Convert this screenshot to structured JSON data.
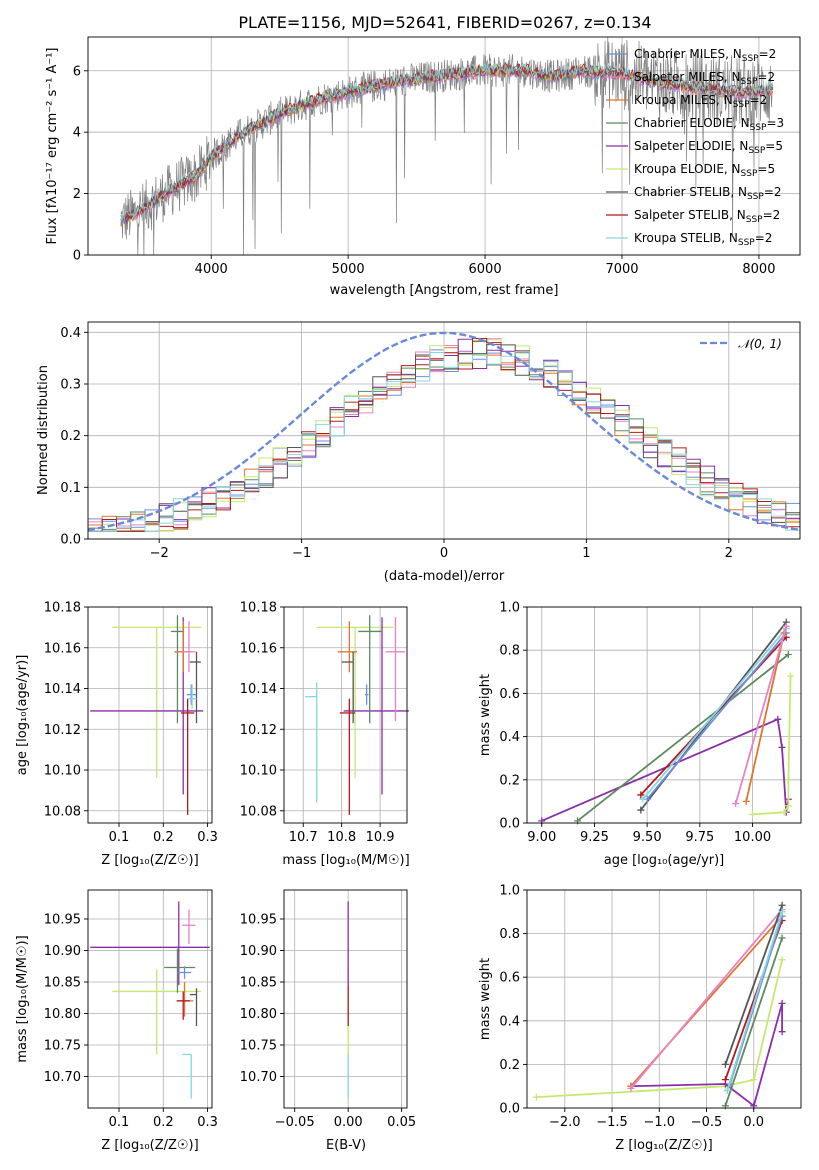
{
  "colors": {
    "chabrier_miles": "#6b8fe0",
    "salpeter_miles": "#e983c8",
    "kroupa_miles": "#e0752c",
    "chabrier_elodie": "#5b8a5e",
    "salpeter_elodie": "#8b2ea8",
    "kroupa_elodie": "#c7e870",
    "chabrier_stelib": "#555555",
    "salpeter_stelib": "#b5191d",
    "kroupa_stelib": "#86d6e0",
    "data": "#7f7f7f",
    "gaussian": "#6a8ad8"
  },
  "chart_data": [
    {
      "id": "spectrum",
      "type": "line",
      "title": "PLATE=1156, MJD=52641, FIBERID=0267, z=0.134",
      "xlabel": "wavelength [Angstrom, rest frame]",
      "ylabel": "Flux [fλ10⁻¹⁷ erg cm⁻² s⁻¹ A⁻¹]",
      "xlim": [
        3100,
        8300
      ],
      "ylim": [
        0,
        7.1
      ],
      "xticks": [
        "4000",
        "5000",
        "6000",
        "7000",
        "8000"
      ],
      "yticks": [
        "0",
        "2",
        "4",
        "6"
      ],
      "continuum": {
        "x": [
          3340,
          3500,
          3700,
          3900,
          4000,
          4200,
          4500,
          4800,
          5000,
          5300,
          5600,
          5800,
          6000,
          6300,
          6500,
          6700,
          7000,
          7300,
          7600,
          7900,
          8100
        ],
        "y": [
          1.1,
          1.5,
          2.1,
          2.6,
          3.2,
          3.9,
          4.6,
          5.1,
          5.3,
          5.6,
          5.8,
          5.9,
          6.0,
          6.0,
          5.8,
          6.0,
          5.9,
          5.6,
          5.4,
          5.3,
          5.4
        ]
      },
      "legend": [
        {
          "label": "Chabrier MILES, N",
          "sub": "SSP",
          "eq": "=2"
        },
        {
          "label": "Salpeter MILES, N",
          "sub": "SSP",
          "eq": "=2"
        },
        {
          "label": "Kroupa MILES, N",
          "sub": "SSP",
          "eq": "=2"
        },
        {
          "label": "Chabrier ELODIE, N",
          "sub": "SSP",
          "eq": "=3"
        },
        {
          "label": "Salpeter ELODIE, N",
          "sub": "SSP",
          "eq": "=5"
        },
        {
          "label": "Kroupa ELODIE, N",
          "sub": "SSP",
          "eq": "=5"
        },
        {
          "label": "Chabrier STELIB, N",
          "sub": "SSP",
          "eq": "=2"
        },
        {
          "label": "Salpeter STELIB, N",
          "sub": "SSP",
          "eq": "=2"
        },
        {
          "label": "Kroupa STELIB, N",
          "sub": "SSP",
          "eq": "=2"
        }
      ],
      "legend_placement": "upper-right"
    },
    {
      "id": "residuals",
      "type": "step-histogram",
      "xlabel": "(data-model)/error",
      "ylabel": "Normed distribution",
      "xlim": [
        -2.5,
        2.5
      ],
      "ylim": [
        0,
        0.42
      ],
      "xticks": [
        "−2",
        "−1",
        "0",
        "1",
        "2"
      ],
      "yticks": [
        "0.0",
        "0.1",
        "0.2",
        "0.3",
        "0.4"
      ],
      "gaussian_label": "𝒩(0, 1)",
      "legend_placement": "upper-right"
    },
    {
      "id": "age_vs_Z",
      "type": "errorbar",
      "xlabel": "Z [log₁₀(Z/Z☉)]",
      "ylabel": "age  [log₁₀(age/yr)]",
      "xlim": [
        0.03,
        0.31
      ],
      "ylim": [
        10.074,
        10.18
      ],
      "xticks": [
        0.1,
        0.2,
        0.3
      ],
      "yticks": [
        10.08,
        10.1,
        10.12,
        10.14,
        10.16,
        10.18
      ],
      "points": [
        {
          "m": "kroupa_elodie",
          "x": 0.185,
          "xerr": [
            0.1,
            0.1
          ],
          "y": 10.17,
          "yerr": [
            0.074,
            0.0
          ]
        },
        {
          "m": "salpeter_elodie",
          "x": 0.245,
          "xerr": [
            0.21,
            0.045
          ],
          "y": 10.129,
          "yerr": [
            0.041,
            0.046
          ]
        },
        {
          "m": "chabrier_elodie",
          "x": 0.232,
          "xerr": [
            0.015,
            0.015
          ],
          "y": 10.168,
          "yerr": [
            0.045,
            0.008
          ]
        },
        {
          "m": "kroupa_miles",
          "x": 0.245,
          "xerr": [
            0.02,
            0.02
          ],
          "y": 10.158,
          "yerr": [
            0.01,
            0.015
          ]
        },
        {
          "m": "salpeter_miles",
          "x": 0.258,
          "xerr": [
            0.015,
            0.015
          ],
          "y": 10.158,
          "yerr": [
            0.01,
            0.015
          ]
        },
        {
          "m": "salpeter_stelib",
          "x": 0.255,
          "xerr": [
            0.015,
            0.015
          ],
          "y": 10.128,
          "yerr": [
            0.05,
            0.007
          ]
        },
        {
          "m": "chabrier_stelib",
          "x": 0.275,
          "xerr": [
            0.015,
            0.01
          ],
          "y": 10.153,
          "yerr": [
            0.03,
            0.005
          ]
        },
        {
          "m": "chabrier_miles",
          "x": 0.263,
          "xerr": [
            0.01,
            0.01
          ],
          "y": 10.137,
          "yerr": [
            0.005,
            0.005
          ]
        },
        {
          "m": "kroupa_stelib",
          "x": 0.265,
          "xerr": [
            0.01,
            0.01
          ],
          "y": 10.135,
          "yerr": [
            0.005,
            0.007
          ]
        }
      ]
    },
    {
      "id": "age_vs_mass",
      "type": "errorbar",
      "xlabel": "mass [log₁₀(M/M☉)]",
      "xlim": [
        10.65,
        10.97
      ],
      "ylim": [
        10.074,
        10.18
      ],
      "xticks": [
        10.7,
        10.8,
        10.9
      ],
      "yticks": [
        10.08,
        10.1,
        10.12,
        10.14,
        10.16,
        10.18
      ],
      "points": [
        {
          "m": "kroupa_elodie",
          "x": 10.835,
          "xerr": [
            0.1,
            0.1
          ],
          "y": 10.17,
          "yerr": [
            0.074,
            0.0
          ]
        },
        {
          "m": "salpeter_elodie",
          "x": 10.905,
          "xerr": [
            0.1,
            0.07
          ],
          "y": 10.129,
          "yerr": [
            0.041,
            0.046
          ]
        },
        {
          "m": "chabrier_elodie",
          "x": 10.873,
          "xerr": [
            0.03,
            0.03
          ],
          "y": 10.168,
          "yerr": [
            0.045,
            0.008
          ]
        },
        {
          "m": "kroupa_miles",
          "x": 10.82,
          "xerr": [
            0.03,
            0.02
          ],
          "y": 10.158,
          "yerr": [
            0.01,
            0.015
          ]
        },
        {
          "m": "salpeter_miles",
          "x": 10.94,
          "xerr": [
            0.025,
            0.025
          ],
          "y": 10.158,
          "yerr": [
            0.034,
            0.017
          ]
        },
        {
          "m": "salpeter_stelib",
          "x": 10.82,
          "xerr": [
            0.025,
            0.015
          ],
          "y": 10.128,
          "yerr": [
            0.05,
            0.007
          ]
        },
        {
          "m": "chabrier_stelib",
          "x": 10.83,
          "xerr": [
            0.03,
            0.0
          ],
          "y": 10.153,
          "yerr": [
            0.03,
            0.005
          ]
        },
        {
          "m": "chabrier_miles",
          "x": 10.865,
          "xerr": [
            0.005,
            0.005
          ],
          "y": 10.137,
          "yerr": [
            0.005,
            0.005
          ]
        },
        {
          "m": "kroupa_stelib",
          "x": 10.735,
          "xerr": [
            0.03,
            0.0
          ],
          "y": 10.136,
          "yerr": [
            0.052,
            0.007
          ]
        }
      ]
    },
    {
      "id": "weight_vs_age",
      "type": "line",
      "xlabel": "age  [log₁₀(age/yr)]",
      "ylabel": "mass weight",
      "xlim": [
        8.93,
        10.23
      ],
      "ylim": [
        0,
        1.0
      ],
      "xticks": [
        "9.00",
        "9.25",
        "9.50",
        "9.75",
        "10.00"
      ],
      "yticks": [
        "0.0",
        "0.2",
        "0.4",
        "0.6",
        "0.8",
        "1.0"
      ],
      "series": [
        {
          "m": "salpeter_elodie",
          "x": [
            9.0,
            10.12,
            10.14,
            10.16,
            10.17
          ],
          "y": [
            0.01,
            0.48,
            0.35,
            0.05,
            0.11
          ]
        },
        {
          "m": "chabrier_elodie",
          "x": [
            9.17,
            10.17
          ],
          "y": [
            0.01,
            0.78
          ]
        },
        {
          "m": "kroupa_elodie",
          "x": [
            10.0,
            10.15,
            10.17,
            10.17,
            10.18
          ],
          "y": [
            0.04,
            0.05,
            0.08,
            0.2,
            0.68
          ]
        },
        {
          "m": "salpeter_stelib",
          "x": [
            9.47,
            10.16
          ],
          "y": [
            0.13,
            0.86
          ]
        },
        {
          "m": "chabrier_stelib",
          "x": [
            9.47,
            10.16
          ],
          "y": [
            0.06,
            0.93
          ]
        },
        {
          "m": "chabrier_miles",
          "x": [
            9.5,
            10.16
          ],
          "y": [
            0.11,
            0.88
          ]
        },
        {
          "m": "kroupa_stelib",
          "x": [
            9.48,
            10.16
          ],
          "y": [
            0.11,
            0.9
          ]
        },
        {
          "m": "kroupa_miles",
          "x": [
            9.97,
            10.15
          ],
          "y": [
            0.1,
            0.88
          ]
        },
        {
          "m": "salpeter_miles",
          "x": [
            9.92,
            10.16
          ],
          "y": [
            0.09,
            0.91
          ]
        }
      ]
    },
    {
      "id": "mass_vs_Z",
      "type": "errorbar",
      "xlabel": "Z [log₁₀(Z/Z☉)]",
      "ylabel": "mass [log₁₀(M/M☉)]",
      "xlim": [
        0.03,
        0.31
      ],
      "ylim": [
        10.65,
        10.996
      ],
      "xticks": [
        0.1,
        0.2,
        0.3
      ],
      "yticks": [
        10.7,
        10.75,
        10.8,
        10.85,
        10.9,
        10.95
      ],
      "points": [
        {
          "m": "kroupa_elodie",
          "x": 0.185,
          "xerr": [
            0.1,
            0.1
          ],
          "y": 10.835,
          "yerr": [
            0.1,
            0.035
          ]
        },
        {
          "m": "salpeter_elodie",
          "x": 0.235,
          "xerr": [
            0.2,
            0.07
          ],
          "y": 10.905,
          "yerr": [
            0.06,
            0.073
          ]
        },
        {
          "m": "chabrier_elodie",
          "x": 0.232,
          "xerr": [
            0.03,
            0.04
          ],
          "y": 10.873,
          "yerr": [
            0.04,
            0.03
          ]
        },
        {
          "m": "kroupa_miles",
          "x": 0.248,
          "xerr": [
            0.015,
            0.02
          ],
          "y": 10.82,
          "yerr": [
            0.025,
            0.03
          ]
        },
        {
          "m": "salpeter_miles",
          "x": 0.258,
          "xerr": [
            0.015,
            0.015
          ],
          "y": 10.94,
          "yerr": [
            0.03,
            0.025
          ]
        },
        {
          "m": "salpeter_stelib",
          "x": 0.245,
          "xerr": [
            0.015,
            0.015
          ],
          "y": 10.82,
          "yerr": [
            0.03,
            0.015
          ]
        },
        {
          "m": "chabrier_stelib",
          "x": 0.275,
          "xerr": [
            0.015,
            0.0
          ],
          "y": 10.83,
          "yerr": [
            0.05,
            0.01
          ]
        },
        {
          "m": "chabrier_miles",
          "x": 0.248,
          "xerr": [
            0.015,
            0.015
          ],
          "y": 10.865,
          "yerr": [
            0.01,
            0.01
          ]
        },
        {
          "m": "kroupa_stelib",
          "x": 0.263,
          "xerr": [
            0.02,
            0.0
          ],
          "y": 10.735,
          "yerr": [
            0.07,
            0.0
          ]
        }
      ]
    },
    {
      "id": "mass_vs_ebv",
      "type": "errorbar",
      "xlabel": "E(B-V)",
      "xlim": [
        -0.06,
        0.055
      ],
      "ylim": [
        10.65,
        10.996
      ],
      "xticks": [
        "−0.05",
        "0.00",
        "0.05"
      ],
      "yticks": [
        10.7,
        10.75,
        10.8,
        10.85,
        10.9,
        10.95
      ],
      "points": [
        {
          "m": "kroupa_stelib",
          "x": 0.0,
          "y": 10.735,
          "yerr": [
            0.07,
            0.0
          ]
        },
        {
          "m": "kroupa_elodie",
          "x": 0.0,
          "y": 10.835,
          "yerr": [
            0.1,
            0.035
          ]
        },
        {
          "m": "salpeter_elodie",
          "x": 0.0,
          "y": 10.905,
          "yerr": [
            0.06,
            0.073
          ]
        },
        {
          "m": "salpeter_stelib",
          "x": 0.0,
          "y": 10.82,
          "yerr": [
            0.04,
            0.025
          ]
        }
      ]
    },
    {
      "id": "weight_vs_Z",
      "type": "line",
      "xlabel": "Z [log₁₀(Z/Z☉)]",
      "ylabel": "mass weight",
      "xlim": [
        -2.4,
        0.5
      ],
      "ylim": [
        0,
        1.0
      ],
      "xticks": [
        "−2.0",
        "−1.5",
        "−1.0",
        "−0.5",
        "0.0"
      ],
      "yticks": [
        "0.0",
        "0.2",
        "0.4",
        "0.6",
        "0.8",
        "1.0"
      ],
      "series": [
        {
          "m": "kroupa_elodie",
          "x": [
            -2.3,
            -0.3,
            0.0,
            0.3
          ],
          "y": [
            0.05,
            0.1,
            0.13,
            0.68
          ]
        },
        {
          "m": "salpeter_elodie",
          "x": [
            -1.3,
            -0.3,
            0.0,
            0.3,
            0.3
          ],
          "y": [
            0.1,
            0.11,
            0.01,
            0.48,
            0.35
          ]
        },
        {
          "m": "kroupa_miles",
          "x": [
            -1.3,
            0.3
          ],
          "y": [
            0.1,
            0.88
          ]
        },
        {
          "m": "salpeter_miles",
          "x": [
            -1.3,
            0.3
          ],
          "y": [
            0.09,
            0.91
          ]
        },
        {
          "m": "chabrier_elodie",
          "x": [
            -0.3,
            0.3
          ],
          "y": [
            0.01,
            0.78
          ]
        },
        {
          "m": "chabrier_stelib",
          "x": [
            -0.3,
            0.3
          ],
          "y": [
            0.2,
            0.93
          ]
        },
        {
          "m": "salpeter_stelib",
          "x": [
            -0.3,
            0.3
          ],
          "y": [
            0.13,
            0.86
          ]
        },
        {
          "m": "chabrier_miles",
          "x": [
            -0.25,
            0.3
          ],
          "y": [
            0.11,
            0.88
          ]
        },
        {
          "m": "kroupa_stelib",
          "x": [
            -0.28,
            0.3
          ],
          "y": [
            0.08,
            0.9
          ]
        }
      ]
    }
  ]
}
